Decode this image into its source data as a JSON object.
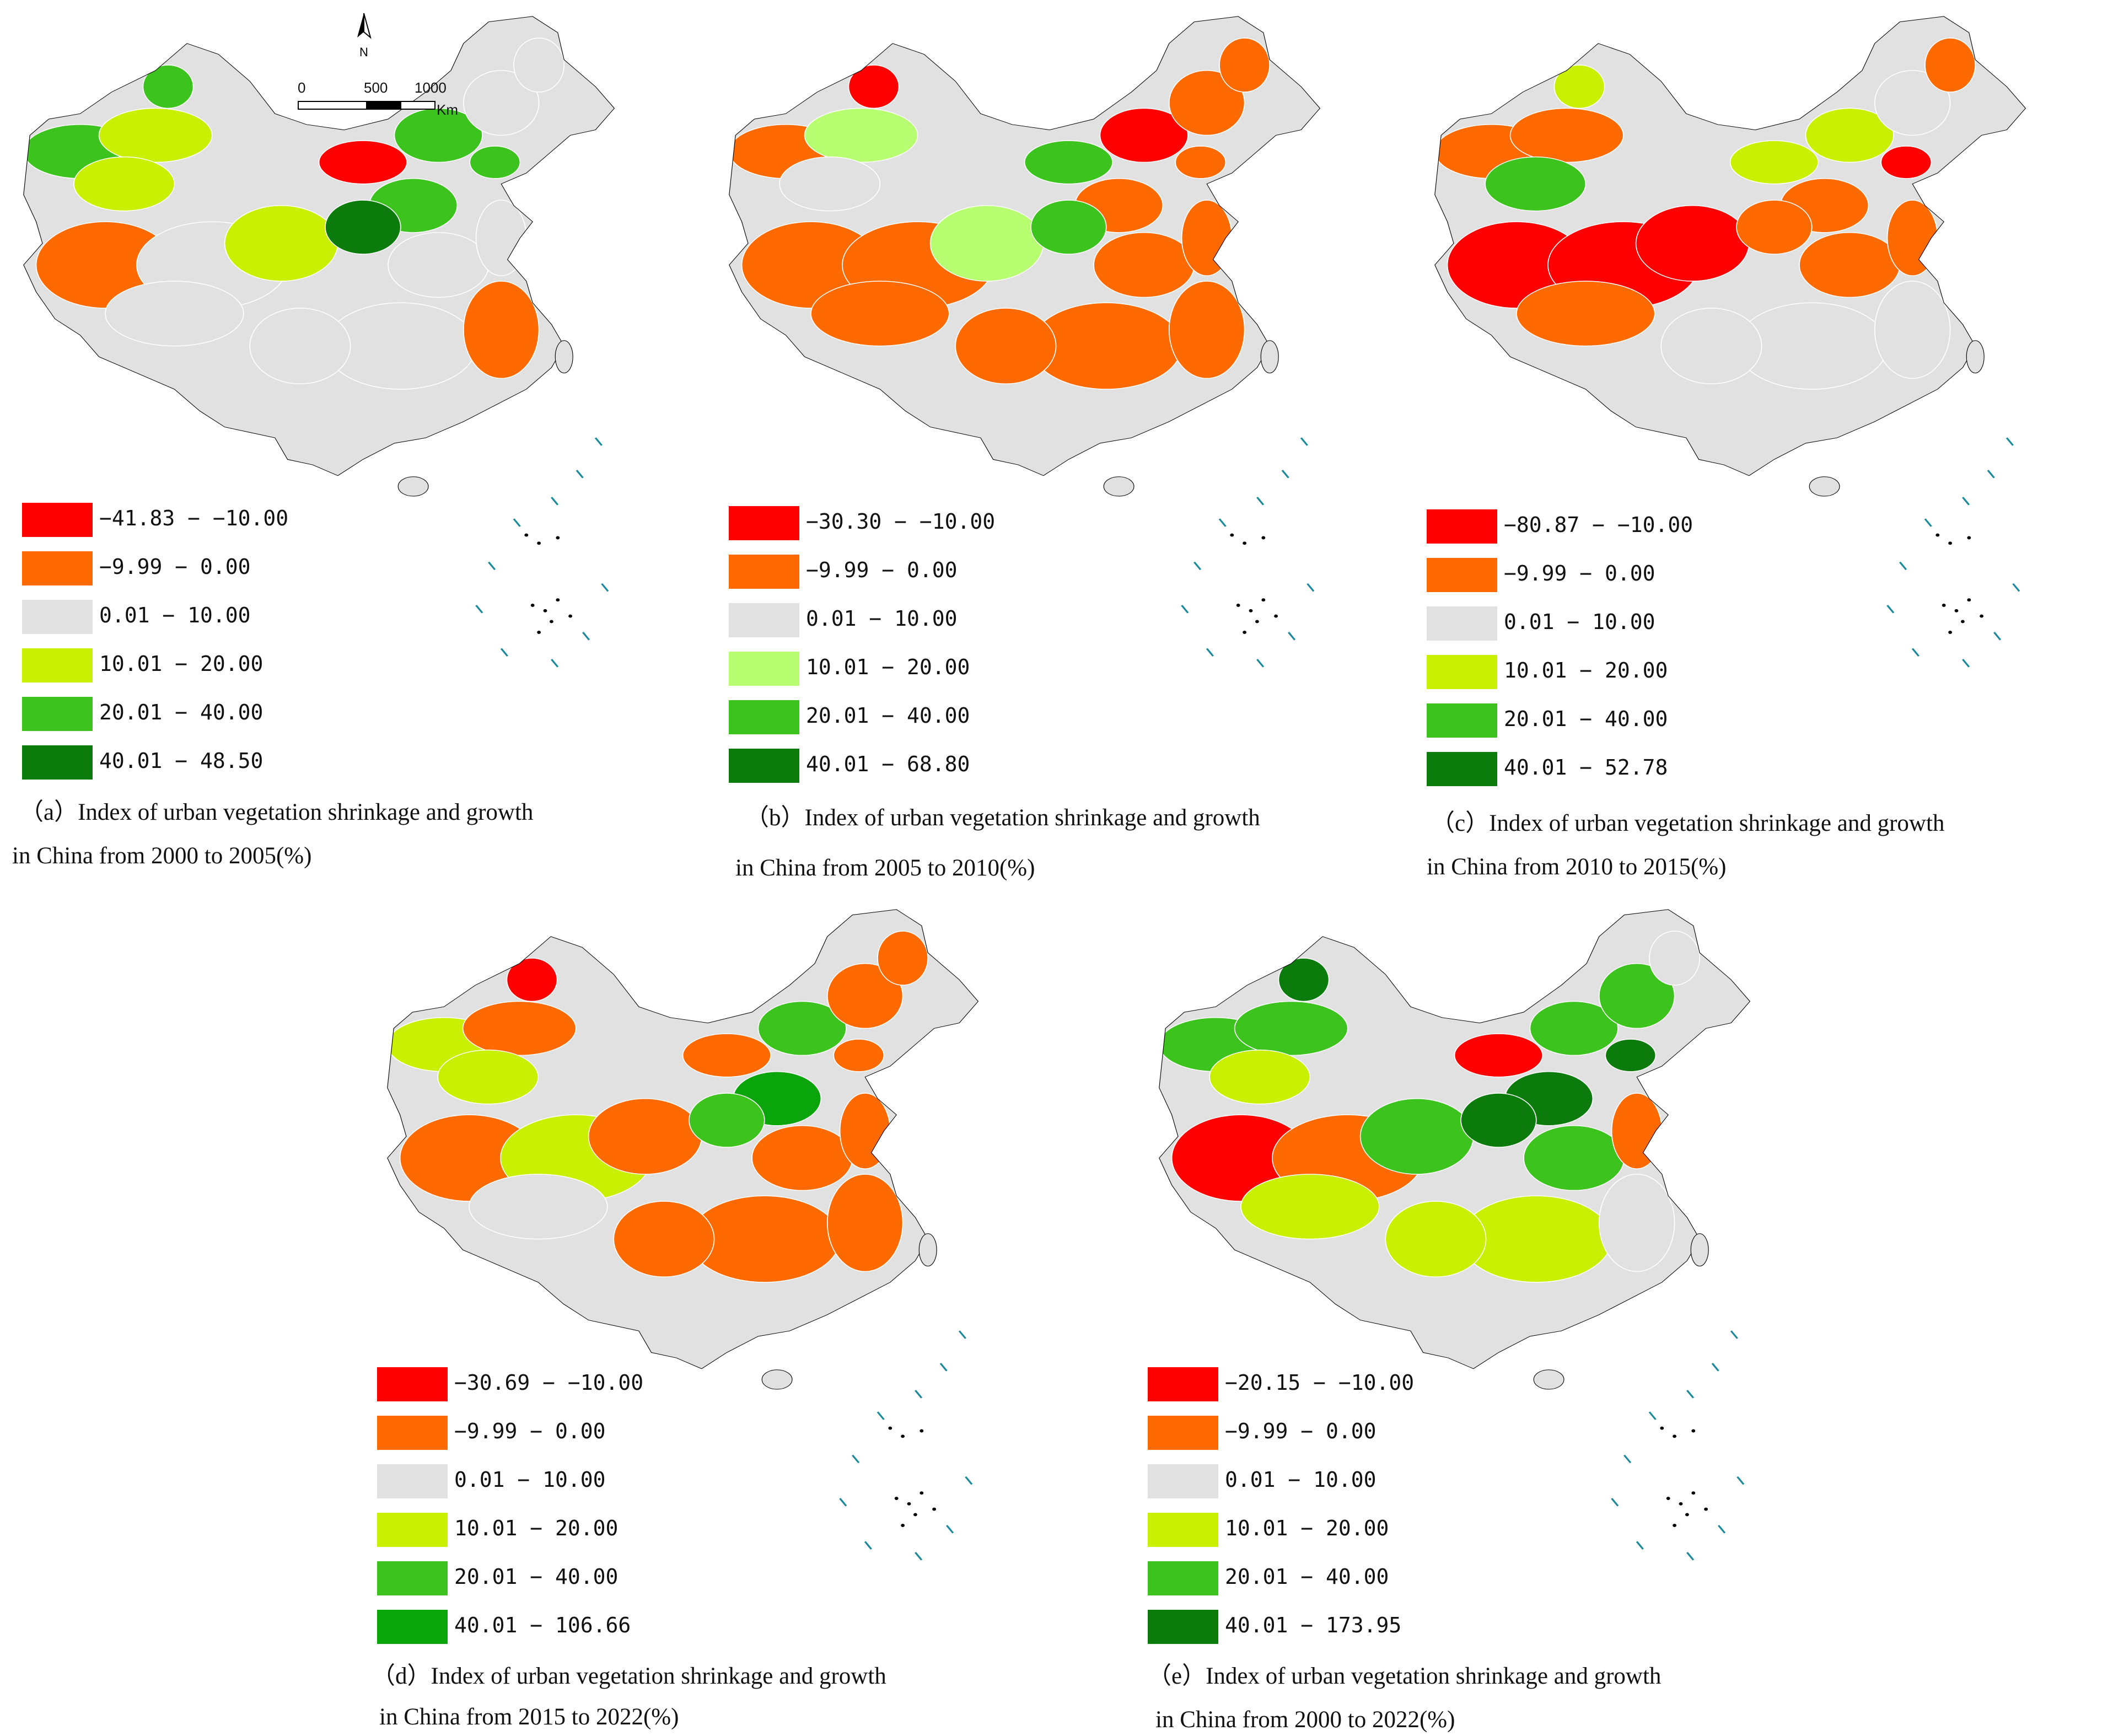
{
  "colors": {
    "class1": "#ff0000",
    "class2": "#ff6a00",
    "class3": "#e1e1e1",
    "class4_default": "#c8f000",
    "class4_b": "#b7ff70",
    "class5": "#3cc31e",
    "class6_default": "#0b7c0b",
    "class6_d": "#0aa50a",
    "boundary": "#ffffff",
    "outline": "#000000",
    "sea_islands": "#1a8a9a"
  },
  "north_arrow": {
    "label": "N"
  },
  "scale_bar": {
    "ticks": [
      "0",
      "500",
      "1000"
    ],
    "unit": "Km"
  },
  "panels": [
    {
      "id": "a",
      "caption_line1": "（a）Index of urban vegetation shrinkage and growth",
      "caption_line2": "in China from 2000 to 2005(%)",
      "legend": [
        {
          "label": "−41.83 − −10.00",
          "color": "#ff0000"
        },
        {
          "label": "−9.99 − 0.00",
          "color": "#ff6a00"
        },
        {
          "label": "0.01 − 10.00",
          "color": "#e1e1e1"
        },
        {
          "label": "10.01 − 20.00",
          "color": "#c8f000"
        },
        {
          "label": "20.01 − 40.00",
          "color": "#3cc31e"
        },
        {
          "label": "40.01 − 48.50",
          "color": "#0b7c0b"
        }
      ]
    },
    {
      "id": "b",
      "caption_line1": "（b）Index of urban vegetation shrinkage and growth",
      "caption_line2": "in China from 2005 to 2010(%)",
      "legend": [
        {
          "label": "−30.30 − −10.00",
          "color": "#ff0000"
        },
        {
          "label": "−9.99 − 0.00",
          "color": "#ff6a00"
        },
        {
          "label": "0.01 − 10.00",
          "color": "#e1e1e1"
        },
        {
          "label": "10.01 − 20.00",
          "color": "#b7ff70"
        },
        {
          "label": "20.01 − 40.00",
          "color": "#3cc31e"
        },
        {
          "label": "40.01 − 68.80",
          "color": "#0b7c0b"
        }
      ]
    },
    {
      "id": "c",
      "caption_line1": "（c）Index of urban vegetation shrinkage and growth",
      "caption_line2": "in China from 2010 to 2015(%)",
      "legend": [
        {
          "label": "−80.87 − −10.00",
          "color": "#ff0000"
        },
        {
          "label": "−9.99 − 0.00",
          "color": "#ff6a00"
        },
        {
          "label": "0.01 − 10.00",
          "color": "#e1e1e1"
        },
        {
          "label": "10.01 − 20.00",
          "color": "#c8f000"
        },
        {
          "label": "20.01 − 40.00",
          "color": "#3cc31e"
        },
        {
          "label": "40.01 − 52.78",
          "color": "#0b7c0b"
        }
      ]
    },
    {
      "id": "d",
      "caption_line1": "（d）Index of urban vegetation shrinkage and growth",
      "caption_line2": "in China from 2015 to 2022(%)",
      "legend": [
        {
          "label": "−30.69 − −10.00",
          "color": "#ff0000"
        },
        {
          "label": "−9.99 − 0.00",
          "color": "#ff6a00"
        },
        {
          "label": "0.01 − 10.00",
          "color": "#e1e1e1"
        },
        {
          "label": "10.01 − 20.00",
          "color": "#c8f000"
        },
        {
          "label": "20.01 − 40.00",
          "color": "#3cc31e"
        },
        {
          "label": "40.01 − 106.66",
          "color": "#0aa50a"
        }
      ]
    },
    {
      "id": "e",
      "caption_line1": "（e）Index of urban vegetation shrinkage and growth",
      "caption_line2": "in China from 2000 to 2022(%)",
      "legend": [
        {
          "label": "−20.15 − −10.00",
          "color": "#ff0000"
        },
        {
          "label": "−9.99 − 0.00",
          "color": "#ff6a00"
        },
        {
          "label": "0.01 − 10.00",
          "color": "#e1e1e1"
        },
        {
          "label": "10.01 − 20.00",
          "color": "#c8f000"
        },
        {
          "label": "20.01 − 40.00",
          "color": "#3cc31e"
        },
        {
          "label": "40.01 − 173.95",
          "color": "#0b7c0b"
        }
      ]
    }
  ]
}
